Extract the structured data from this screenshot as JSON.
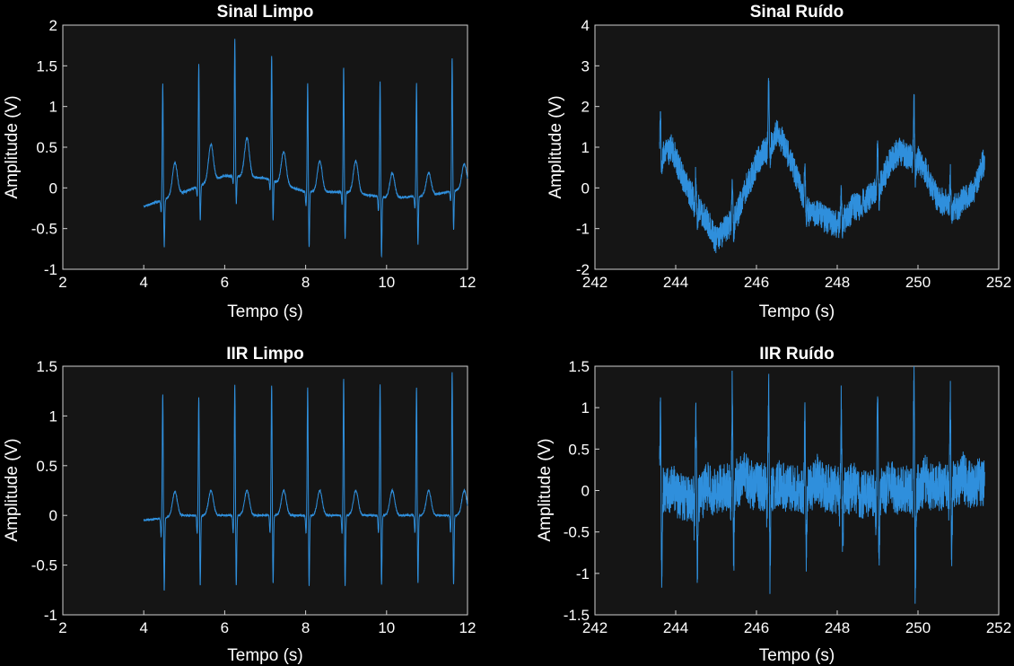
{
  "figure": {
    "background": "#000000",
    "axes_background": "#151515",
    "axes_color": "#cfcfcf",
    "line_color": "#2f8fdc"
  },
  "chart_data": [
    {
      "type": "line",
      "title": "Sinal Limpo",
      "xlabel": "Tempo (s)",
      "ylabel": "Amplitude (V)",
      "xlim": [
        2,
        12
      ],
      "ylim": [
        -1,
        2
      ],
      "xticks": [
        "2",
        "4",
        "6",
        "8",
        "10",
        "12"
      ],
      "yticks": [
        "-1",
        "-0.5",
        "0",
        "0.5",
        "1",
        "1.5",
        "2"
      ],
      "grid": false,
      "series": [
        {
          "t_start": 4.0,
          "t_end": 12.0,
          "baseline": [
            [
              4.0,
              -0.23
            ],
            [
              5.0,
              -0.05
            ],
            [
              6.0,
              0.15
            ],
            [
              7.0,
              0.12
            ],
            [
              8.0,
              -0.05
            ],
            [
              9.0,
              -0.05
            ],
            [
              10.0,
              -0.12
            ],
            [
              11.0,
              -0.1
            ],
            [
              12.0,
              0.0
            ]
          ],
          "r_peaks": [
            4.47,
            5.36,
            6.25,
            7.16,
            8.05,
            8.94,
            9.84,
            10.74,
            11.62
          ],
          "r_amplitudes": [
            1.43,
            1.5,
            1.7,
            1.55,
            1.35,
            1.55,
            1.42,
            1.4,
            1.65
          ],
          "s_amplitudes": [
            -0.6,
            -0.45,
            -0.35,
            -0.5,
            -0.7,
            -0.6,
            -0.75,
            -0.6,
            -0.5
          ],
          "t_amplitudes": [
            0.4,
            0.45,
            0.48,
            0.4,
            0.38,
            0.4,
            0.3,
            0.28,
            0.3
          ],
          "noise": 0.015
        }
      ]
    },
    {
      "type": "line",
      "title": "Sinal Ruído",
      "xlabel": "Tempo (s)",
      "ylabel": "Amplitude (V)",
      "xlim": [
        242,
        252
      ],
      "ylim": [
        -2,
        4
      ],
      "xticks": [
        "242",
        "244",
        "246",
        "248",
        "250",
        "252"
      ],
      "yticks": [
        "-2",
        "-1",
        "0",
        "1",
        "2",
        "3",
        "4"
      ],
      "grid": false,
      "series": [
        {
          "t_start": 243.6,
          "t_end": 251.65,
          "baseline": [
            [
              243.6,
              0.8
            ],
            [
              243.9,
              0.9
            ],
            [
              244.3,
              0.0
            ],
            [
              245.0,
              -1.3
            ],
            [
              245.5,
              -0.7
            ],
            [
              246.0,
              0.6
            ],
            [
              246.5,
              1.3
            ],
            [
              246.8,
              0.8
            ],
            [
              247.3,
              -0.6
            ],
            [
              248.0,
              -0.9
            ],
            [
              248.5,
              -0.5
            ],
            [
              249.0,
              0.0
            ],
            [
              249.5,
              0.9
            ],
            [
              250.0,
              0.7
            ],
            [
              250.5,
              -0.3
            ],
            [
              251.0,
              -0.5
            ],
            [
              251.4,
              0.0
            ],
            [
              251.6,
              0.6
            ]
          ],
          "r_peaks": [
            243.62,
            244.5,
            245.4,
            246.3,
            247.2,
            248.1,
            249.0,
            249.9,
            250.8
          ],
          "r_amplitudes": [
            0.9,
            0.7,
            0.9,
            1.6,
            1.0,
            0.8,
            1.1,
            1.6,
            0.7
          ],
          "s_amplitudes": [
            -0.5,
            -0.4,
            -0.3,
            -0.4,
            -0.4,
            -0.3,
            -0.4,
            -0.5,
            -0.3
          ],
          "t_amplitudes": [
            0.1,
            0.1,
            0.1,
            0.1,
            0.1,
            0.1,
            0.1,
            0.1,
            0.1
          ],
          "noise": 0.35
        }
      ]
    },
    {
      "type": "line",
      "title": "IIR Limpo",
      "xlabel": "Tempo (s)",
      "ylabel": "Amplitude (V)",
      "xlim": [
        2,
        12
      ],
      "ylim": [
        -1,
        1.5
      ],
      "xticks": [
        "2",
        "4",
        "6",
        "8",
        "10",
        "12"
      ],
      "yticks": [
        "-1",
        "-0.5",
        "0",
        "0.5",
        "1",
        "1.5"
      ],
      "grid": false,
      "series": [
        {
          "t_start": 4.0,
          "t_end": 12.0,
          "baseline": [
            [
              4.0,
              -0.05
            ],
            [
              5.0,
              0.0
            ],
            [
              8.0,
              0.0
            ],
            [
              12.0,
              0.0
            ]
          ],
          "r_peaks": [
            4.47,
            5.36,
            6.25,
            7.16,
            8.05,
            8.94,
            9.84,
            10.74,
            11.62
          ],
          "r_amplitudes": [
            1.25,
            1.2,
            1.32,
            1.32,
            1.3,
            1.38,
            1.32,
            1.3,
            1.45
          ],
          "s_amplitudes": [
            -0.75,
            -0.72,
            -0.72,
            -0.7,
            -0.72,
            -0.72,
            -0.72,
            -0.7,
            -0.72
          ],
          "t_amplitudes": [
            0.25,
            0.25,
            0.25,
            0.25,
            0.25,
            0.25,
            0.25,
            0.25,
            0.25
          ],
          "noise": 0.01
        }
      ]
    },
    {
      "type": "line",
      "title": "IIR Ruído",
      "xlabel": "Tempo (s)",
      "ylabel": "Amplitude (V)",
      "xlim": [
        242,
        252
      ],
      "ylim": [
        -1.5,
        1.5
      ],
      "xticks": [
        "242",
        "244",
        "246",
        "248",
        "250",
        "252"
      ],
      "yticks": [
        "-1.5",
        "-1",
        "-0.5",
        "0",
        "0.5",
        "1",
        "1.5"
      ],
      "grid": false,
      "series": [
        {
          "t_start": 243.6,
          "t_end": 251.65,
          "baseline": [
            [
              243.6,
              0.0
            ],
            [
              244.5,
              -0.1
            ],
            [
              245.5,
              0.1
            ],
            [
              246.5,
              0.0
            ],
            [
              247.5,
              0.05
            ],
            [
              248.5,
              -0.05
            ],
            [
              249.5,
              0.0
            ],
            [
              250.5,
              0.05
            ],
            [
              251.65,
              0.1
            ]
          ],
          "r_peaks": [
            243.62,
            244.5,
            245.4,
            246.3,
            247.2,
            248.1,
            249.0,
            249.9,
            250.8
          ],
          "r_amplitudes": [
            1.0,
            1.1,
            1.1,
            1.2,
            1.0,
            1.1,
            1.2,
            1.4,
            1.0
          ],
          "s_amplitudes": [
            -1.1,
            -0.9,
            -0.9,
            -1.0,
            -0.9,
            -0.8,
            -1.0,
            -1.4,
            -0.8
          ],
          "t_amplitudes": [
            0.1,
            0.1,
            0.1,
            0.1,
            0.1,
            0.1,
            0.1,
            0.1,
            0.1
          ],
          "noise": 0.3
        }
      ]
    }
  ]
}
